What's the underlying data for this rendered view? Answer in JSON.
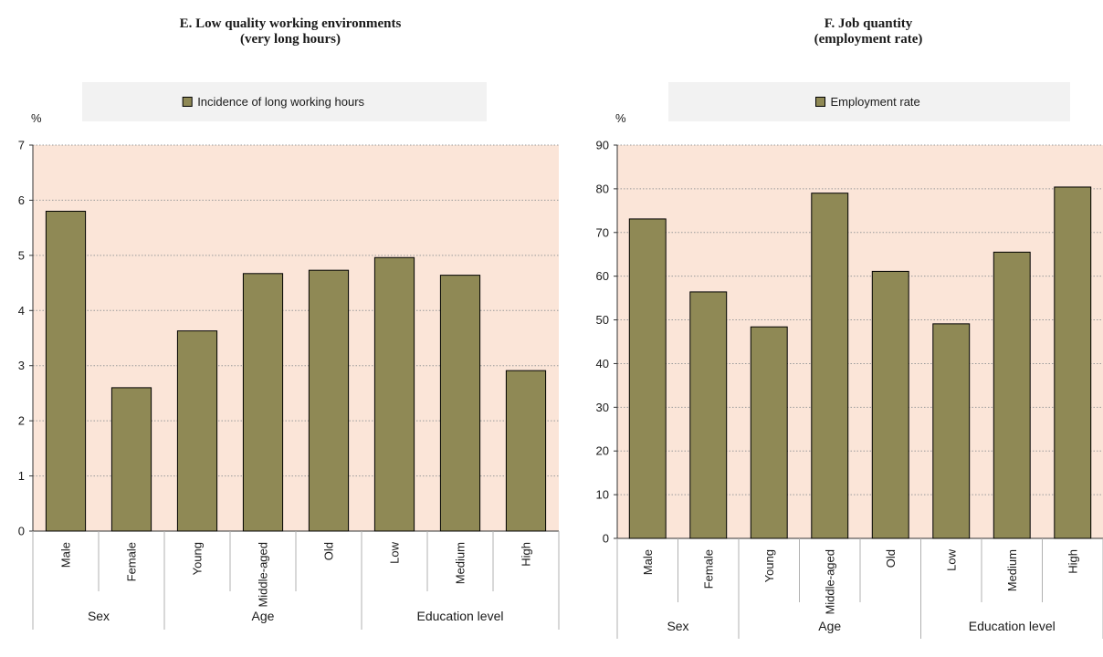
{
  "chart_data": [
    {
      "type": "bar",
      "title": [
        "E. Low quality working environments",
        "(very long hours)"
      ],
      "ylabel": "%",
      "ylim": [
        0,
        7
      ],
      "yticks": [
        0,
        1,
        2,
        3,
        4,
        5,
        6,
        7
      ],
      "legend_placement": "top",
      "grid": true,
      "categories": [
        "Male",
        "Female",
        "Young",
        "Middle-aged",
        "Old",
        "Low",
        "Medium",
        "High"
      ],
      "groups": [
        {
          "label": "Sex",
          "count": 2
        },
        {
          "label": "Age",
          "count": 3
        },
        {
          "label": "Education level",
          "count": 3
        }
      ],
      "series": [
        {
          "name": "Incidence of long working hours",
          "values": [
            5.8,
            2.6,
            3.63,
            4.67,
            4.73,
            4.96,
            4.64,
            2.91
          ]
        }
      ],
      "colors": {
        "bar": "#8f8955",
        "bar_stroke": "#000000",
        "plot_bg": "#fbe5d8",
        "legend_bg": "#f2f2f2",
        "grid": "#9a9a9a"
      }
    },
    {
      "type": "bar",
      "title": [
        "F. Job quantity",
        "(employment rate)"
      ],
      "ylabel": "%",
      "ylim": [
        0,
        90
      ],
      "yticks": [
        0,
        10,
        20,
        30,
        40,
        50,
        60,
        70,
        80,
        90
      ],
      "legend_placement": "top",
      "grid": true,
      "categories": [
        "Male",
        "Female",
        "Young",
        "Middle-aged",
        "Old",
        "Low",
        "Medium",
        "High"
      ],
      "groups": [
        {
          "label": "Sex",
          "count": 2
        },
        {
          "label": "Age",
          "count": 3
        },
        {
          "label": "Education level",
          "count": 3
        }
      ],
      "series": [
        {
          "name": "Employment rate",
          "values": [
            73.1,
            56.4,
            48.4,
            79.0,
            61.1,
            49.1,
            65.5,
            80.4
          ]
        }
      ],
      "colors": {
        "bar": "#8f8955",
        "bar_stroke": "#000000",
        "plot_bg": "#fbe5d8",
        "legend_bg": "#f2f2f2",
        "grid": "#9a9a9a"
      }
    }
  ]
}
